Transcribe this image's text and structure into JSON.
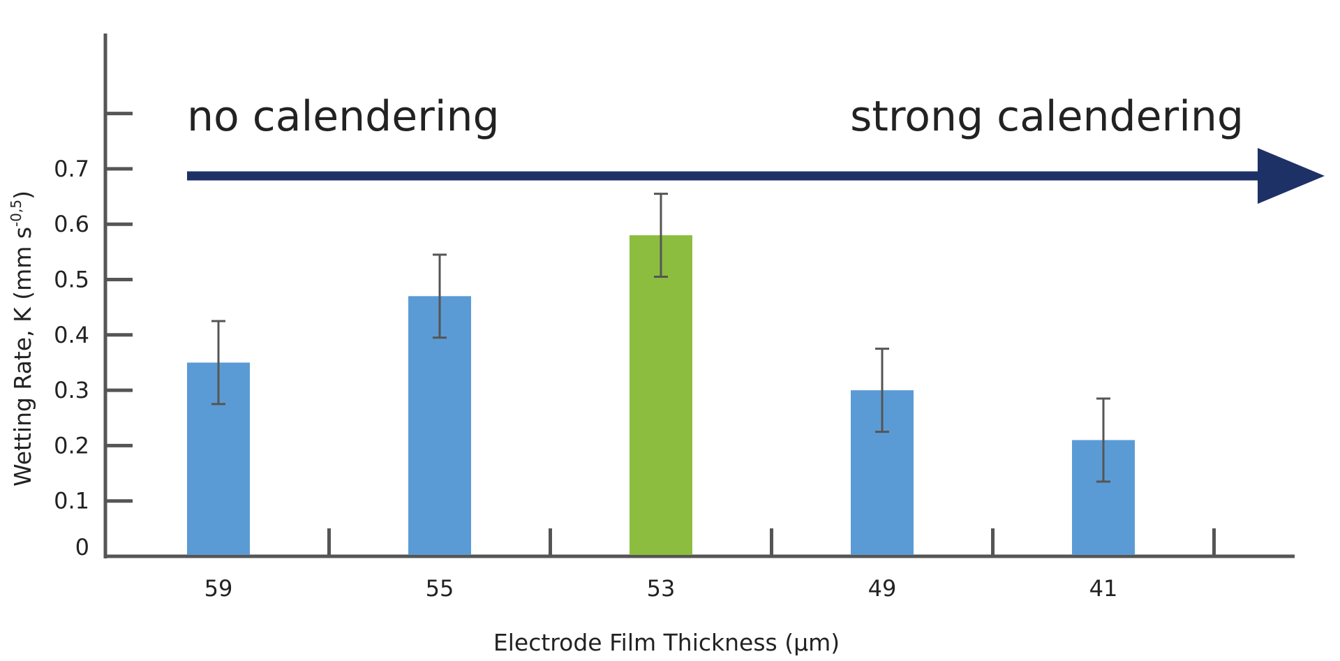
{
  "chart_data": {
    "type": "bar",
    "categories": [
      "59",
      "55",
      "53",
      "49",
      "41"
    ],
    "values": [
      0.35,
      0.47,
      0.58,
      0.3,
      0.21
    ],
    "errors": [
      0.075,
      0.075,
      0.075,
      0.075,
      0.075
    ],
    "colors": [
      "#5b9bd5",
      "#5b9bd5",
      "#8cbd3f",
      "#5b9bd5",
      "#5b9bd5"
    ],
    "xlabel": "Electrode Film Thickness (µm)",
    "ylabel": "Wetting Rate, K (mm s",
    "ylabel_sup": "-0,5",
    "ylabel_end": ")",
    "ylim": [
      0,
      0.8
    ],
    "yticks": [
      "0",
      "0.1",
      "0.2",
      "0.3",
      "0.4",
      "0.5",
      "0.6",
      "0.7"
    ],
    "grid": false,
    "annotations": {
      "left": "no calendering",
      "right": "strong calendering",
      "arrow_color": "#1d3166"
    },
    "axis_color": "#555555",
    "errorbar_color": "#555555"
  }
}
